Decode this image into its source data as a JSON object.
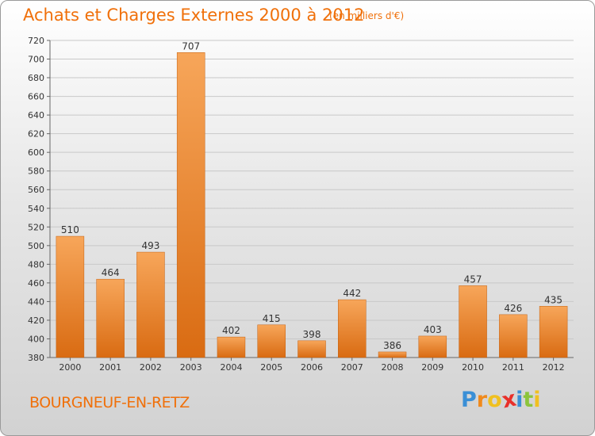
{
  "header": {
    "title": "Achats et Charges Externes 2000 à 2012",
    "subtitle": "(en milliers d'€)"
  },
  "footer": {
    "commune": "BOURGNEUF-EN-RETZ",
    "brand": {
      "text": "Proxiti",
      "letters": [
        {
          "ch": "P",
          "color": "#3a8fd6"
        },
        {
          "ch": "r",
          "color": "#f08a1c"
        },
        {
          "ch": "o",
          "color": "#f0c020"
        },
        {
          "ch": "x",
          "color": "#e8302a"
        },
        {
          "ch": "i",
          "color": "#3a8fd6"
        },
        {
          "ch": "t",
          "color": "#8cc43c"
        },
        {
          "ch": "i",
          "color": "#f0c020"
        }
      ]
    }
  },
  "colors": {
    "accent": "#f0700a",
    "bar_top": "#f7a65a",
    "bar_bottom": "#d96b12",
    "grid": "#c8c8c8"
  },
  "chart_data": {
    "type": "bar",
    "categories": [
      "2000",
      "2001",
      "2002",
      "2003",
      "2004",
      "2005",
      "2006",
      "2007",
      "2008",
      "2009",
      "2010",
      "2011",
      "2012"
    ],
    "values": [
      510,
      464,
      493,
      707,
      402,
      415,
      398,
      442,
      386,
      403,
      457,
      426,
      435
    ],
    "ylim": [
      380,
      720
    ],
    "yticks": [
      380,
      400,
      420,
      440,
      460,
      480,
      500,
      520,
      540,
      560,
      580,
      600,
      620,
      640,
      660,
      680,
      700,
      720
    ],
    "grid": true,
    "legend": "none"
  }
}
